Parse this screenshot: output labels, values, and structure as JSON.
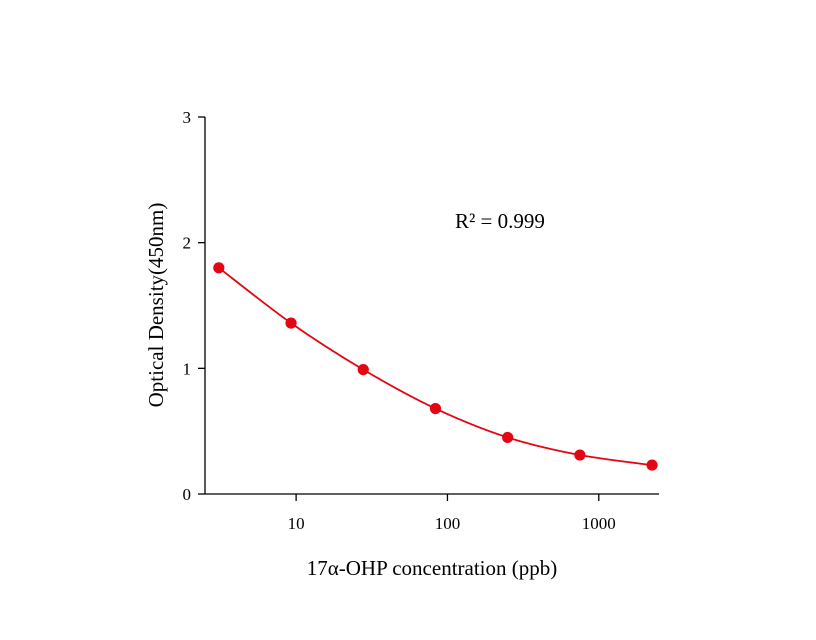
{
  "chart_data": {
    "type": "scatter",
    "title": "",
    "xlabel": "17α-OHP concentration (ppb)",
    "ylabel": "Optical Density(450nm)",
    "x_scale": "log",
    "xlim": [
      2.5,
      2500
    ],
    "ylim": [
      0,
      3
    ],
    "x_ticks": [
      10,
      100,
      1000
    ],
    "x_tick_labels": [
      "10",
      "100",
      "1000"
    ],
    "y_ticks": [
      0,
      1,
      2,
      3
    ],
    "y_tick_labels": [
      "0",
      "1",
      "2",
      "3"
    ],
    "grid": false,
    "legend": "none",
    "annotation": "R² = 0.999",
    "color": "#e30613",
    "series": [
      {
        "x": [
          3.086,
          9.259,
          27.78,
          83.33,
          250,
          750,
          2250
        ],
        "y": [
          1.8,
          1.36,
          0.99,
          0.68,
          0.45,
          0.31,
          0.23
        ]
      }
    ]
  }
}
